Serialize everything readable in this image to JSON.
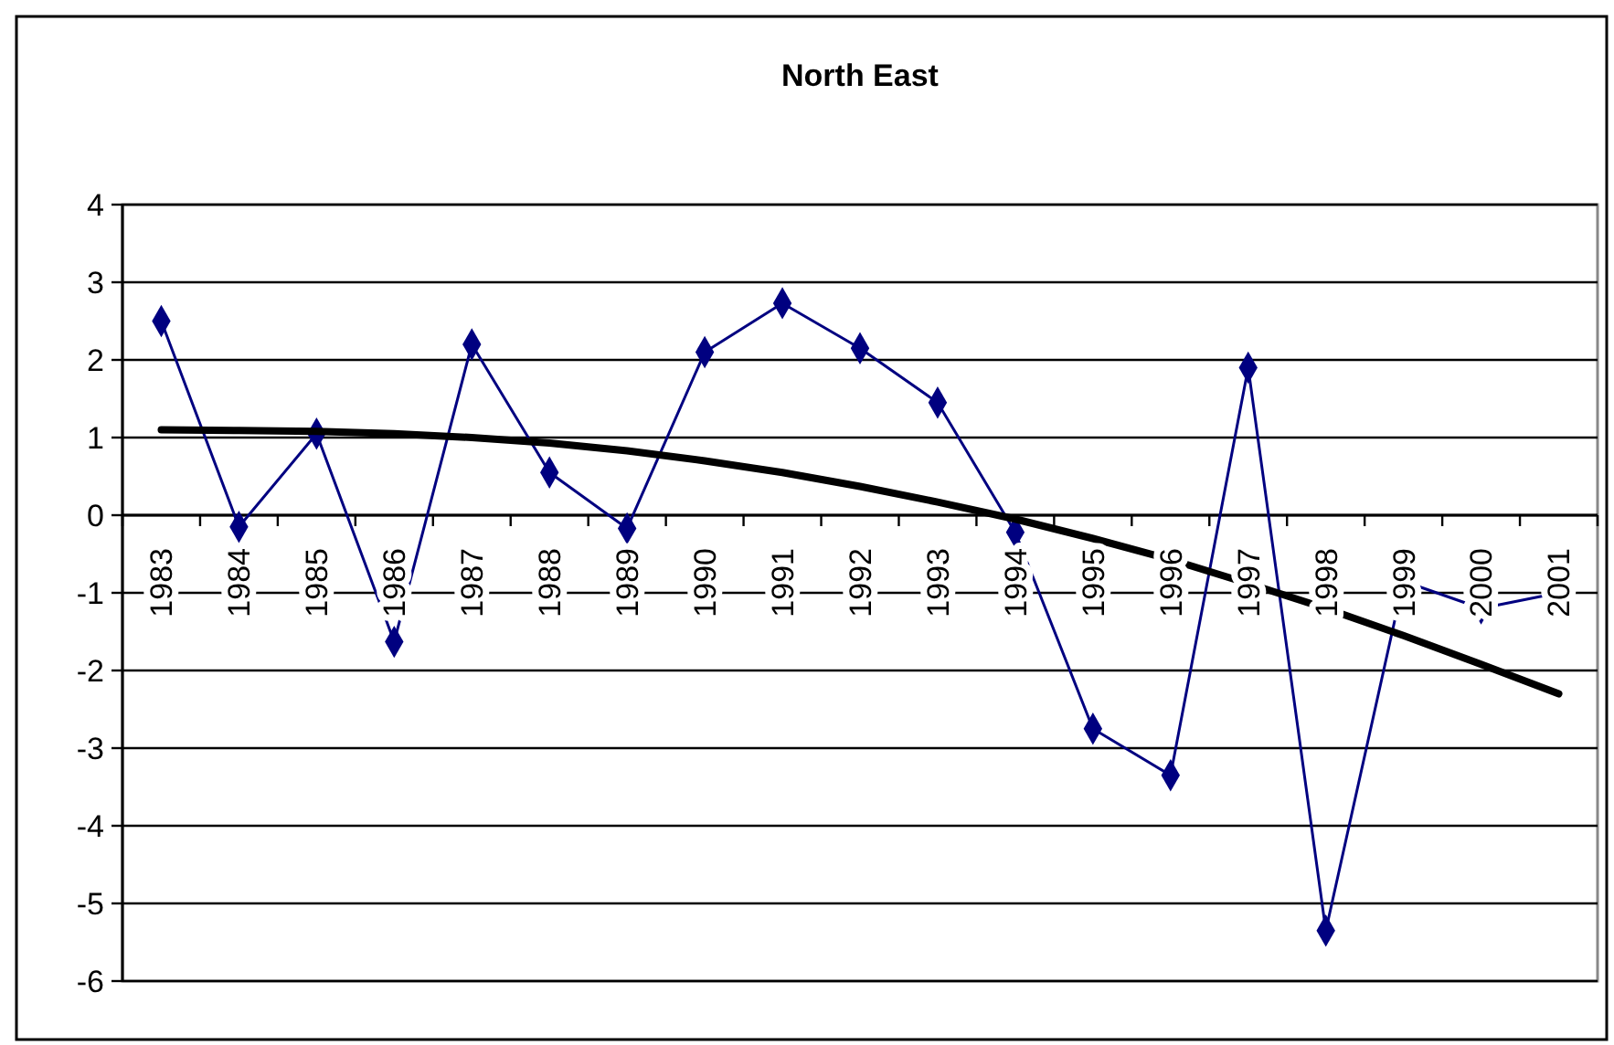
{
  "chart_data": {
    "type": "line",
    "title": "North East",
    "categories": [
      "1983",
      "1984",
      "1985",
      "1986",
      "1987",
      "1988",
      "1989",
      "1990",
      "1991",
      "1992",
      "1993",
      "1994",
      "1995",
      "1996",
      "1997",
      "1998",
      "1999",
      "2000",
      "2001"
    ],
    "series": [
      {
        "color": "#000080",
        "marker": "diamond",
        "values": [
          2.5,
          -0.15,
          1.05,
          -1.63,
          2.2,
          0.55,
          -0.17,
          2.1,
          2.73,
          2.15,
          1.45,
          -0.22,
          -2.75,
          -3.35,
          1.9,
          -5.35,
          -0.85,
          -1.2,
          -1.0
        ]
      },
      {
        "color": "#000000",
        "marker": "none",
        "values": [
          1.1,
          1.09,
          1.08,
          1.05,
          1.0,
          0.93,
          0.83,
          0.7,
          0.55,
          0.37,
          0.17,
          -0.05,
          -0.3,
          -0.57,
          -0.88,
          -1.2,
          -1.55,
          -1.92,
          -2.3
        ]
      }
    ],
    "ylim": [
      -6,
      4
    ],
    "yticks": [
      -6,
      -5,
      -4,
      -3,
      -2,
      -1,
      0,
      1,
      2,
      3,
      4
    ],
    "grid": "y"
  }
}
